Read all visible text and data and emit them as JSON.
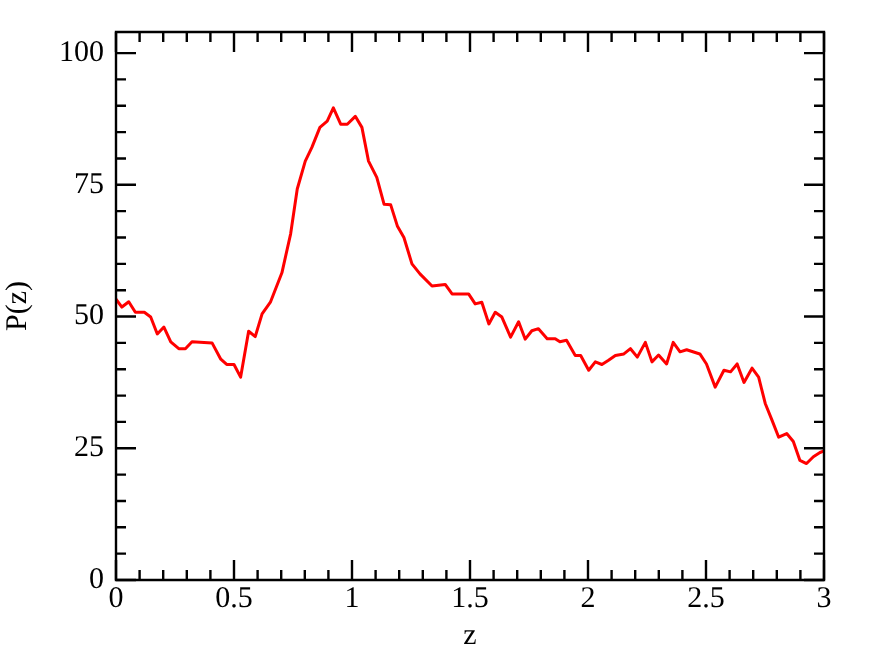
{
  "chart_data": {
    "type": "line",
    "xlabel": "z",
    "ylabel": "P(z)",
    "xlim": [
      0,
      3
    ],
    "ylim": [
      0,
      104
    ],
    "xticks": [
      0,
      {
        "value": 0.1,
        "label": null
      },
      {
        "value": 0.2,
        "label": null
      },
      {
        "value": 0.3,
        "label": null
      },
      {
        "value": 0.4,
        "label": null
      },
      0.5,
      {
        "value": 0.6,
        "label": null
      },
      {
        "value": 0.7,
        "label": null
      },
      {
        "value": 0.8,
        "label": null
      },
      {
        "value": 0.9,
        "label": null
      },
      1,
      {
        "value": 1.1,
        "label": null
      },
      {
        "value": 1.2,
        "label": null
      },
      {
        "value": 1.3,
        "label": null
      },
      {
        "value": 1.4,
        "label": null
      },
      1.5,
      {
        "value": 1.6,
        "label": null
      },
      {
        "value": 1.7,
        "label": null
      },
      {
        "value": 1.8,
        "label": null
      },
      {
        "value": 1.9,
        "label": null
      },
      2,
      {
        "value": 2.1,
        "label": null
      },
      {
        "value": 2.2,
        "label": null
      },
      {
        "value": 2.3,
        "label": null
      },
      {
        "value": 2.4,
        "label": null
      },
      2.5,
      {
        "value": 2.6,
        "label": null
      },
      {
        "value": 2.7,
        "label": null
      },
      {
        "value": 2.8,
        "label": null
      },
      {
        "value": 2.9,
        "label": null
      },
      3
    ],
    "yticks": [
      0,
      {
        "value": 5,
        "label": null
      },
      {
        "value": 10,
        "label": null
      },
      {
        "value": 15,
        "label": null
      },
      {
        "value": 20,
        "label": null
      },
      25,
      {
        "value": 30,
        "label": null
      },
      {
        "value": 35,
        "label": null
      },
      {
        "value": 40,
        "label": null
      },
      {
        "value": 45,
        "label": null
      },
      50,
      {
        "value": 55,
        "label": null
      },
      {
        "value": 60,
        "label": null
      },
      {
        "value": 65,
        "label": null
      },
      {
        "value": 70,
        "label": null
      },
      75,
      {
        "value": 80,
        "label": null
      },
      {
        "value": 85,
        "label": null
      },
      {
        "value": 90,
        "label": null
      },
      {
        "value": 95,
        "label": null
      },
      100
    ],
    "grid": false,
    "legend": false,
    "marker": "none",
    "line_style": "solid",
    "series": [
      {
        "color": "#ff0000",
        "x": [
          0,
          0.025,
          0.054,
          0.082,
          0.12,
          0.147,
          0.175,
          0.203,
          0.232,
          0.266,
          0.294,
          0.322,
          0.407,
          0.444,
          0.469,
          0.5,
          0.528,
          0.562,
          0.59,
          0.619,
          0.655,
          0.703,
          0.74,
          0.768,
          0.802,
          0.83,
          0.864,
          0.895,
          0.921,
          0.952,
          0.98,
          1.014,
          1.042,
          1.07,
          1.105,
          1.136,
          1.164,
          1.192,
          1.22,
          1.254,
          1.288,
          1.339,
          1.395,
          1.424,
          1.466,
          1.494,
          1.522,
          1.55,
          1.58,
          1.607,
          1.635,
          1.672,
          1.706,
          1.734,
          1.762,
          1.79,
          1.827,
          1.861,
          1.881,
          1.909,
          1.946,
          1.969,
          2.003,
          2.031,
          2.059,
          2.087,
          2.116,
          2.152,
          2.18,
          2.209,
          2.243,
          2.271,
          2.299,
          2.333,
          2.361,
          2.39,
          2.418,
          2.474,
          2.502,
          2.539,
          2.576,
          2.604,
          2.632,
          2.661,
          2.695,
          2.723,
          2.751,
          2.78,
          2.808,
          2.842,
          2.87,
          2.898,
          2.926,
          2.955,
          2.983,
          3
        ],
        "values": [
          53.3,
          51.8,
          52.8,
          50.8,
          50.8,
          49.9,
          46.7,
          48,
          45.2,
          43.9,
          43.9,
          45.2,
          45,
          41.9,
          40.9,
          40.9,
          38.5,
          47.2,
          46.2,
          50.5,
          52.8,
          58.3,
          65.7,
          74.2,
          79.5,
          82.1,
          85.9,
          87.1,
          89.6,
          86.5,
          86.5,
          88,
          85.9,
          79.5,
          76.4,
          71.3,
          71.2,
          67.2,
          65,
          60,
          58.1,
          55.8,
          56.1,
          54.3,
          54.3,
          54.3,
          52.4,
          52.7,
          48.6,
          50.8,
          49.9,
          46.1,
          49,
          45.7,
          47.3,
          47.7,
          45.8,
          45.8,
          45.2,
          45.5,
          42.6,
          42.6,
          39.8,
          41.4,
          40.9,
          41.7,
          42.6,
          42.9,
          43.9,
          42.3,
          45.1,
          41.4,
          42.7,
          41,
          45.1,
          43.3,
          43.7,
          42.9,
          41,
          36.6,
          39.8,
          39.5,
          41,
          37.5,
          40.2,
          38.5,
          33.5,
          30.3,
          27.1,
          27.8,
          26.3,
          22.7,
          22.1,
          23.4,
          24.2,
          24.5
        ]
      }
    ]
  }
}
